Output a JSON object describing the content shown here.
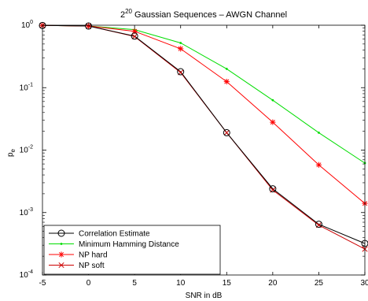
{
  "chart_data": {
    "type": "line",
    "title_base": "2",
    "title_exp": "20",
    "title_rest": " Gaussian Sequences – AWGN Channel",
    "xlabel": "SNR in dB",
    "ylabel_main": "p",
    "ylabel_sub": "e",
    "xlim": [
      -5,
      30
    ],
    "ylim": [
      0.0001,
      1
    ],
    "yscale": "log",
    "grid": false,
    "legend_position": "bottom-left",
    "x_ticks": [
      -5,
      0,
      5,
      10,
      15,
      20,
      25,
      30
    ],
    "y_ticks": [
      {
        "value": 1,
        "base": "10",
        "exp": "0"
      },
      {
        "value": 0.1,
        "base": "10",
        "exp": "-1"
      },
      {
        "value": 0.01,
        "base": "10",
        "exp": "-2"
      },
      {
        "value": 0.001,
        "base": "10",
        "exp": "-3"
      },
      {
        "value": 0.0001,
        "base": "10",
        "exp": "-4"
      }
    ],
    "x": [
      -5,
      0,
      5,
      10,
      15,
      20,
      25,
      30
    ],
    "series": [
      {
        "name": "Correlation Estimate",
        "color": "#000000",
        "marker": "circle",
        "values": [
          0.99,
          0.97,
          0.67,
          0.18,
          0.019,
          0.0024,
          0.00065,
          0.00032
        ]
      },
      {
        "name": "Minimum Hamming Distance",
        "color": "#00dd00",
        "marker": "point",
        "values": [
          0.99,
          0.97,
          0.85,
          0.52,
          0.2,
          0.063,
          0.019,
          0.0062
        ]
      },
      {
        "name": "NP hard",
        "color": "#ff0000",
        "marker": "asterisk",
        "values": [
          0.99,
          0.97,
          0.8,
          0.42,
          0.125,
          0.028,
          0.0058,
          0.0014
        ]
      },
      {
        "name": "NP soft",
        "color": "#cc0000",
        "marker": "cross",
        "values": [
          0.99,
          0.97,
          0.66,
          0.175,
          0.019,
          0.0023,
          0.00063,
          0.00026
        ]
      }
    ]
  }
}
